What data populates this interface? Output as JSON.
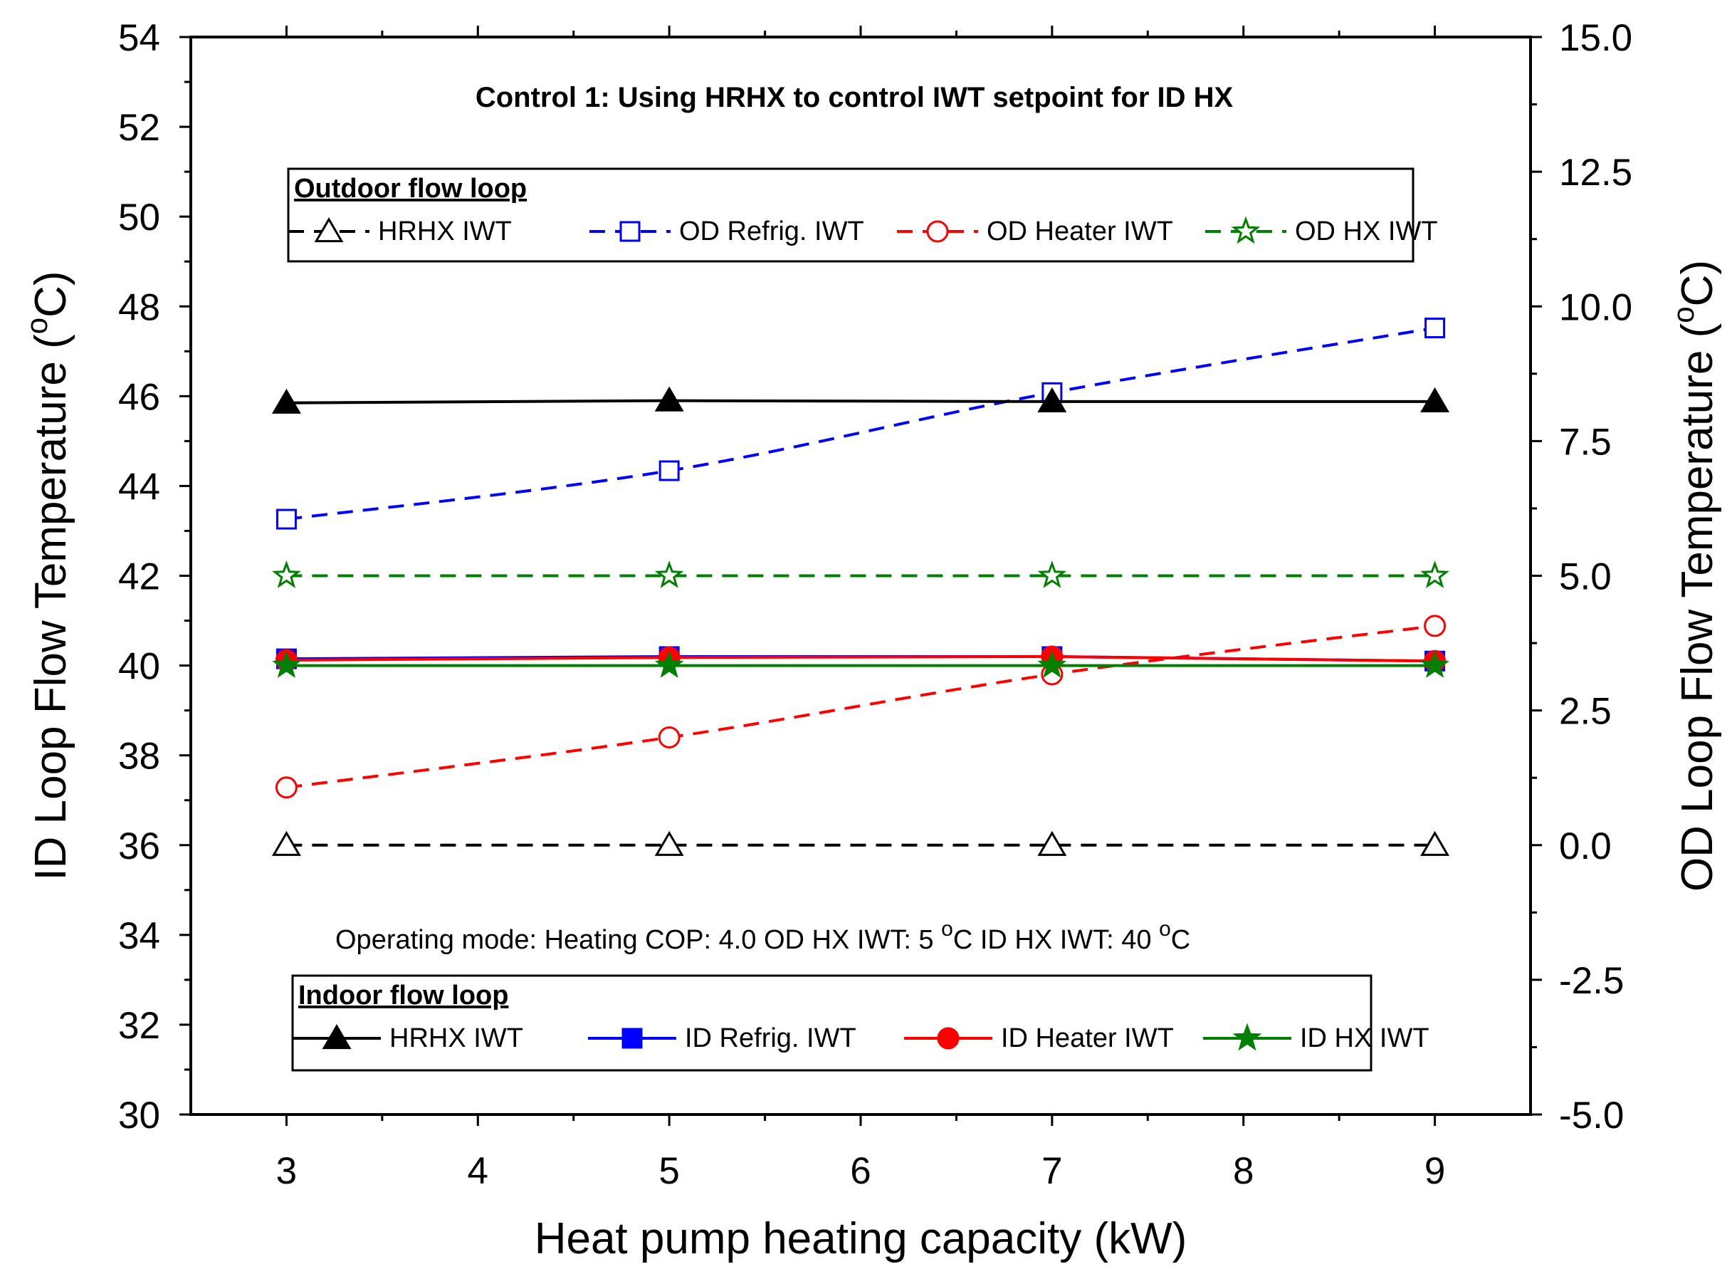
{
  "chart_data": {
    "type": "line",
    "title": "Control 1: Using HRHX to control IWT setpoint for ID HX",
    "xlabel": "Heat pump heating capacity (kW)",
    "ylabel_left": "ID Loop Flow Temperature (",
    "ylabel_right": "OD Loop Flow Temperature (",
    "unit_degree": "o",
    "unit_letter": "C",
    "xlim": [
      2.5,
      9.5
    ],
    "ylim_left": [
      30,
      54
    ],
    "ylim_right": [
      -5.0,
      15.0
    ],
    "x_ticks": [
      "3",
      "4",
      "5",
      "6",
      "7",
      "8",
      "9"
    ],
    "y_left_ticks": [
      "30",
      "32",
      "34",
      "36",
      "38",
      "40",
      "42",
      "44",
      "46",
      "48",
      "50",
      "52",
      "54"
    ],
    "y_right_ticks": [
      "-5.0",
      "-2.5",
      "0.0",
      "2.5",
      "5.0",
      "7.5",
      "10.0",
      "12.5",
      "15.0"
    ],
    "x": [
      3,
      5,
      7,
      9
    ],
    "outdoor_legend_title": "Outdoor flow loop",
    "indoor_legend_title": "Indoor flow loop",
    "series": [
      {
        "name": "HRHX IWT",
        "loop": "outdoor",
        "axis": "right",
        "color": "#000000",
        "dash": true,
        "marker": "triangle",
        "filled": false,
        "values": [
          0.0,
          0.0,
          0.0,
          0.0
        ]
      },
      {
        "name": "OD Refrig. IWT",
        "loop": "outdoor",
        "axis": "right",
        "color": "#0000ff",
        "dash": true,
        "marker": "square",
        "filled": false,
        "values": [
          6.05,
          6.95,
          8.4,
          9.6
        ]
      },
      {
        "name": "OD Heater IWT",
        "loop": "outdoor",
        "axis": "right",
        "color": "#ff0000",
        "dash": true,
        "marker": "circle",
        "filled": false,
        "values": [
          1.07,
          2.0,
          3.17,
          4.07
        ]
      },
      {
        "name": "OD HX IWT",
        "loop": "outdoor",
        "axis": "right",
        "color": "#008000",
        "dash": true,
        "marker": "star",
        "filled": false,
        "values": [
          5.0,
          5.0,
          5.0,
          5.0
        ]
      },
      {
        "name": "HRHX IWT",
        "loop": "indoor",
        "axis": "left",
        "color": "#000000",
        "dash": false,
        "marker": "triangle",
        "filled": true,
        "values": [
          45.85,
          45.9,
          45.88,
          45.88
        ]
      },
      {
        "name": "ID Refrig. IWT",
        "loop": "indoor",
        "axis": "left",
        "color": "#0000ff",
        "dash": false,
        "marker": "square",
        "filled": true,
        "values": [
          40.15,
          40.2,
          40.2,
          40.1
        ]
      },
      {
        "name": "ID Heater IWT",
        "loop": "indoor",
        "axis": "left",
        "color": "#ff0000",
        "dash": false,
        "marker": "circle",
        "filled": true,
        "values": [
          40.12,
          40.18,
          40.2,
          40.1
        ]
      },
      {
        "name": "ID HX IWT",
        "loop": "indoor",
        "axis": "left",
        "color": "#008000",
        "dash": false,
        "marker": "star",
        "filled": true,
        "values": [
          40.0,
          40.0,
          40.0,
          40.0
        ]
      }
    ],
    "annotation": {
      "parts": [
        {
          "text": "Operating mode: Heating    COP: 4.0    OD HX IWT: 5 ",
          "sup": false
        },
        {
          "text": "o",
          "sup": true
        },
        {
          "text": "C   ID HX IWT: 40 ",
          "sup": false
        },
        {
          "text": "o",
          "sup": true
        },
        {
          "text": "C",
          "sup": false
        }
      ]
    }
  }
}
